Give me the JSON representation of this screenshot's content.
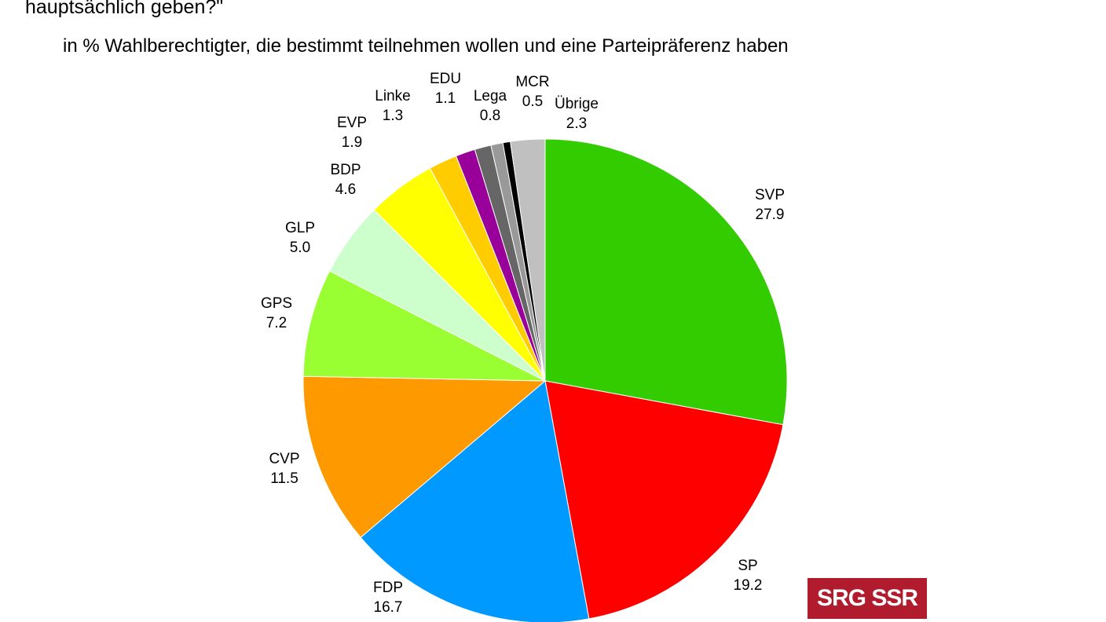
{
  "header": {
    "question_tail": "hauptsächlich geben?\"",
    "subtitle": "in % Wahlberechtigter, die bestimmt teilnehmen wollen und eine Parteipräferenz haben"
  },
  "chart_data": {
    "type": "pie",
    "title": "",
    "start": "12 o'clock",
    "direction": "clockwise",
    "slices": [
      {
        "label": "SVP",
        "value": 27.9,
        "value_text": "27.9",
        "color": "#33cc00"
      },
      {
        "label": "SP",
        "value": 19.2,
        "value_text": "19.2",
        "color": "#ff0000"
      },
      {
        "label": "FDP",
        "value": 16.7,
        "value_text": "16.7",
        "color": "#0099ff"
      },
      {
        "label": "CVP",
        "value": 11.5,
        "value_text": "11.5",
        "color": "#ff9900"
      },
      {
        "label": "GPS",
        "value": 7.2,
        "value_text": "7.2",
        "color": "#99ff33"
      },
      {
        "label": "GLP",
        "value": 5.0,
        "value_text": "5.0",
        "color": "#ccffcc"
      },
      {
        "label": "BDP",
        "value": 4.6,
        "value_text": "4.6",
        "color": "#ffff00"
      },
      {
        "label": "EVP",
        "value": 1.9,
        "value_text": "1.9",
        "color": "#ffcc00"
      },
      {
        "label": "Linke",
        "value": 1.3,
        "value_text": "1.3",
        "color": "#990099"
      },
      {
        "label": "EDU",
        "value": 1.1,
        "value_text": "1.1",
        "color": "#666666"
      },
      {
        "label": "Lega",
        "value": 0.8,
        "value_text": "0.8",
        "color": "#999999"
      },
      {
        "label": "MCR",
        "value": 0.5,
        "value_text": "0.5",
        "color": "#000000"
      },
      {
        "label": "Übrige",
        "value": 2.3,
        "value_text": "2.3",
        "color": "#c0c0c0"
      }
    ]
  },
  "logo": {
    "text": "SRG SSR",
    "color": "#b01c2e"
  }
}
